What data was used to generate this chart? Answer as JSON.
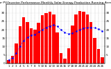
{
  "title": "Solar PV/Inverter Performance Monthly Solar Energy Production Running Average",
  "bar_values": [
    2.1,
    4.5,
    12.0,
    22.0,
    27.5,
    24.5,
    21.0,
    20.0,
    24.0,
    28.5,
    30.0,
    30.5,
    29.0,
    18.5,
    6.0,
    3.0,
    9.0,
    22.5,
    29.0,
    31.0,
    30.5,
    29.0,
    24.5,
    15.0,
    8.5,
    3.5
  ],
  "running_avg": [
    2.1,
    3.3,
    6.2,
    10.2,
    13.6,
    15.4,
    16.7,
    17.0,
    18.6,
    20.0,
    21.3,
    22.2,
    22.7,
    21.9,
    19.9,
    18.3,
    17.4,
    17.9,
    19.0,
    20.0,
    20.8,
    21.3,
    21.4,
    21.1,
    20.3,
    19.3
  ],
  "bar_color": "#ff0000",
  "avg_color": "#0000ff",
  "background_color": "#ffffff",
  "grid_color": "#888888",
  "ylim": [
    0,
    35
  ],
  "y_right_labels": [
    "5",
    "10",
    "15",
    "20",
    "25",
    "30"
  ],
  "y_right_values": [
    5,
    10,
    15,
    20,
    25,
    30
  ],
  "title_fontsize": 3.2,
  "tick_fontsize": 3.0
}
